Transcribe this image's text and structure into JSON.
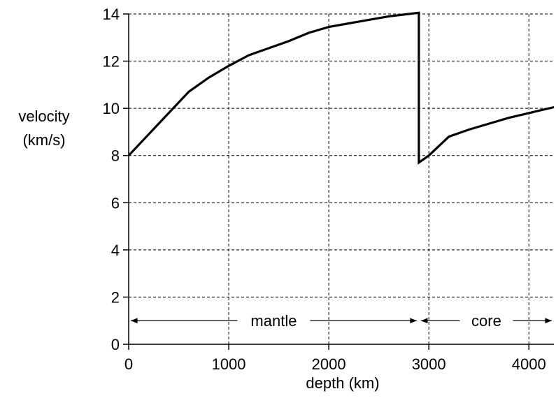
{
  "chart_data": {
    "type": "line",
    "title": "",
    "xlabel": "depth (km)",
    "ylabel_line1": "velocity",
    "ylabel_line2": "(km/s)",
    "xlim": [
      0,
      4250
    ],
    "ylim": [
      0,
      14
    ],
    "x_ticks": [
      0,
      1000,
      2000,
      3000,
      4000
    ],
    "y_ticks": [
      0,
      2,
      4,
      6,
      8,
      10,
      12,
      14
    ],
    "grid": true,
    "series": [
      {
        "values": [
          [
            0,
            8.0
          ],
          [
            200,
            8.9
          ],
          [
            400,
            9.8
          ],
          [
            600,
            10.7
          ],
          [
            800,
            11.3
          ],
          [
            1000,
            11.8
          ],
          [
            1200,
            12.25
          ],
          [
            1400,
            12.55
          ],
          [
            1600,
            12.85
          ],
          [
            1800,
            13.2
          ],
          [
            2000,
            13.45
          ],
          [
            2200,
            13.6
          ],
          [
            2400,
            13.75
          ],
          [
            2600,
            13.9
          ],
          [
            2800,
            14.0
          ],
          [
            2900,
            14.05
          ],
          [
            2900,
            7.7
          ],
          [
            3000,
            8.0
          ],
          [
            3200,
            8.8
          ],
          [
            3400,
            9.1
          ],
          [
            3600,
            9.35
          ],
          [
            3800,
            9.6
          ],
          [
            4000,
            9.8
          ],
          [
            4250,
            10.05
          ]
        ]
      }
    ],
    "annotations": [
      {
        "text": "mantle",
        "y": 1,
        "from_x": 0,
        "to_x": 2900
      },
      {
        "text": "core",
        "y": 1,
        "from_x": 2900,
        "to_x": 4250
      }
    ]
  }
}
